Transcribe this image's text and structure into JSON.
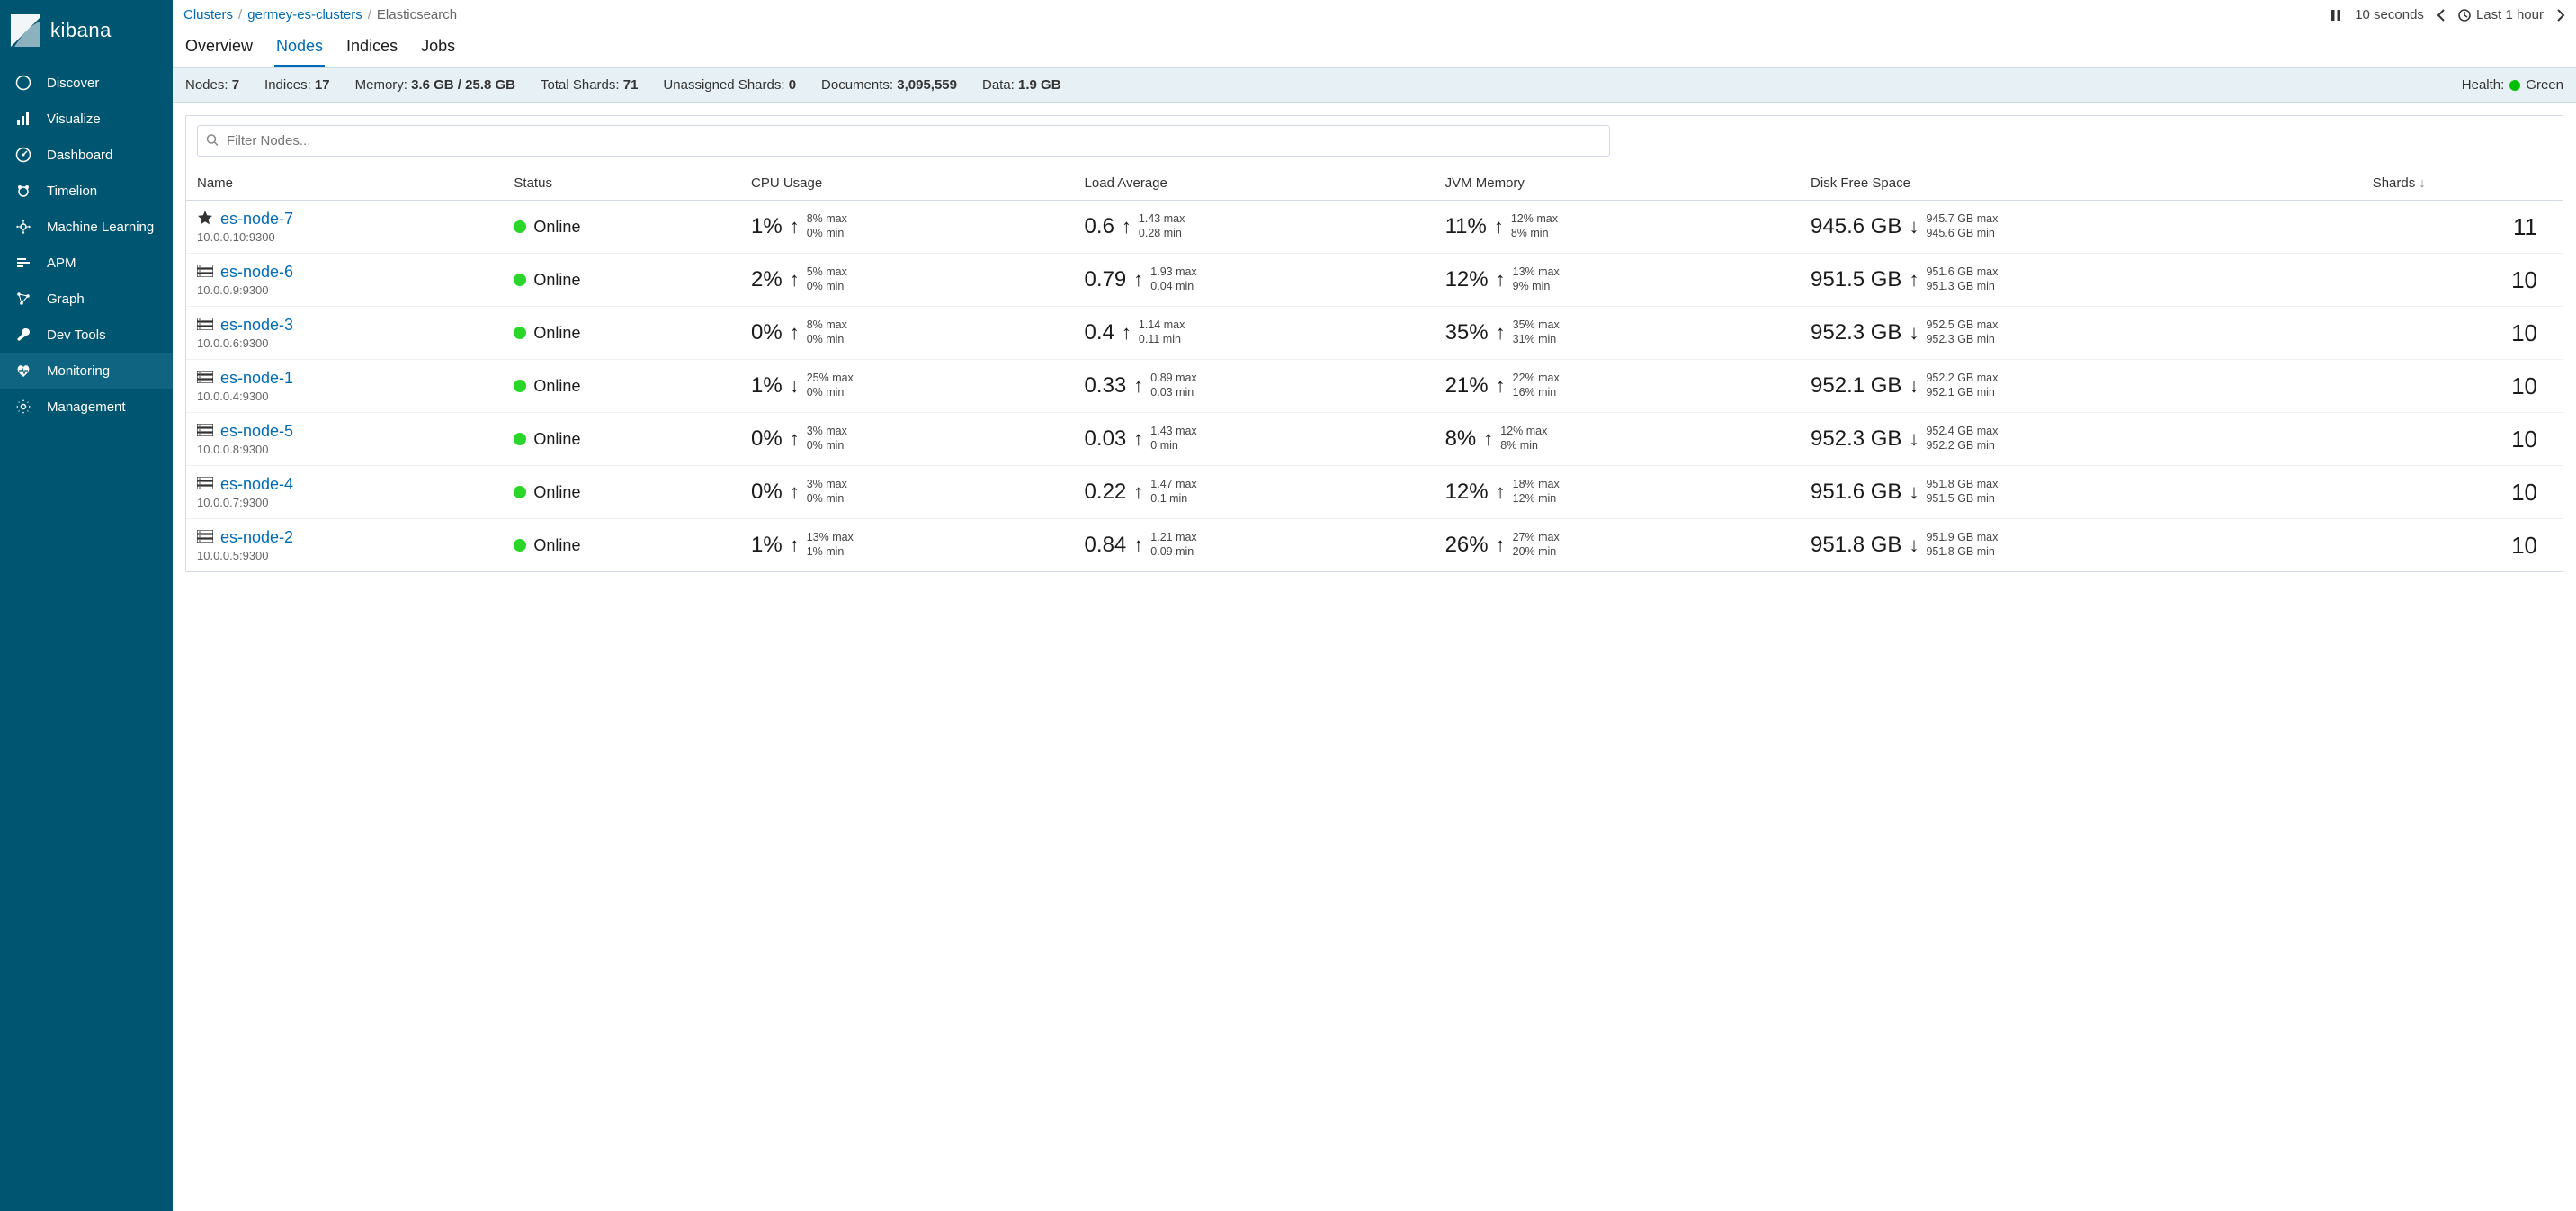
{
  "brand": {
    "name": "kibana"
  },
  "sidebar": {
    "items": [
      {
        "label": "Discover",
        "icon": "compass"
      },
      {
        "label": "Visualize",
        "icon": "bar-chart"
      },
      {
        "label": "Dashboard",
        "icon": "gauge"
      },
      {
        "label": "Timelion",
        "icon": "bear"
      },
      {
        "label": "Machine Learning",
        "icon": "ml"
      },
      {
        "label": "APM",
        "icon": "apm"
      },
      {
        "label": "Graph",
        "icon": "graph"
      },
      {
        "label": "Dev Tools",
        "icon": "wrench"
      },
      {
        "label": "Monitoring",
        "icon": "heart"
      },
      {
        "label": "Management",
        "icon": "gear"
      }
    ],
    "active_index": 8
  },
  "breadcrumb": {
    "items": [
      {
        "label": "Clusters",
        "link": true
      },
      {
        "label": "germey-es-clusters",
        "link": true
      },
      {
        "label": "Elasticsearch",
        "link": false
      }
    ]
  },
  "time": {
    "refresh_interval": "10 seconds",
    "range_label": "Last 1 hour"
  },
  "tabs": {
    "items": [
      "Overview",
      "Nodes",
      "Indices",
      "Jobs"
    ],
    "active_index": 1
  },
  "stats": {
    "nodes_label": "Nodes:",
    "nodes_value": "7",
    "indices_label": "Indices:",
    "indices_value": "17",
    "memory_label": "Memory:",
    "memory_value": "3.6 GB / 25.8 GB",
    "total_shards_label": "Total Shards:",
    "total_shards_value": "71",
    "unassigned_label": "Unassigned Shards:",
    "unassigned_value": "0",
    "documents_label": "Documents:",
    "documents_value": "3,095,559",
    "data_label": "Data:",
    "data_value": "1.9 GB",
    "health_label": "Health:",
    "health_value": "Green",
    "health_color": "#00bf00"
  },
  "filter": {
    "placeholder": "Filter Nodes..."
  },
  "columns": {
    "name": "Name",
    "status": "Status",
    "cpu": "CPU Usage",
    "load": "Load Average",
    "jvm": "JVM Memory",
    "disk": "Disk Free Space",
    "shards": "Shards"
  },
  "sort": {
    "column": "shards",
    "dir": "desc"
  },
  "nodes": [
    {
      "name": "es-node-7",
      "addr": "10.0.0.10:9300",
      "master": true,
      "status": "Online",
      "cpu": {
        "val": "1%",
        "dir": "up",
        "max": "8% max",
        "min": "0% min"
      },
      "load": {
        "val": "0.6",
        "dir": "up",
        "max": "1.43 max",
        "min": "0.28 min"
      },
      "jvm": {
        "val": "11%",
        "dir": "up",
        "max": "12% max",
        "min": "8% min"
      },
      "disk": {
        "val": "945.6 GB",
        "dir": "down",
        "max": "945.7 GB max",
        "min": "945.6 GB min"
      },
      "shards": "11"
    },
    {
      "name": "es-node-6",
      "addr": "10.0.0.9:9300",
      "master": false,
      "status": "Online",
      "cpu": {
        "val": "2%",
        "dir": "up",
        "max": "5% max",
        "min": "0% min"
      },
      "load": {
        "val": "0.79",
        "dir": "up",
        "max": "1.93 max",
        "min": "0.04 min"
      },
      "jvm": {
        "val": "12%",
        "dir": "up",
        "max": "13% max",
        "min": "9% min"
      },
      "disk": {
        "val": "951.5 GB",
        "dir": "up",
        "max": "951.6 GB max",
        "min": "951.3 GB min"
      },
      "shards": "10"
    },
    {
      "name": "es-node-3",
      "addr": "10.0.0.6:9300",
      "master": false,
      "status": "Online",
      "cpu": {
        "val": "0%",
        "dir": "up",
        "max": "8% max",
        "min": "0% min"
      },
      "load": {
        "val": "0.4",
        "dir": "up",
        "max": "1.14 max",
        "min": "0.11 min"
      },
      "jvm": {
        "val": "35%",
        "dir": "up",
        "max": "35% max",
        "min": "31% min"
      },
      "disk": {
        "val": "952.3 GB",
        "dir": "down",
        "max": "952.5 GB max",
        "min": "952.3 GB min"
      },
      "shards": "10"
    },
    {
      "name": "es-node-1",
      "addr": "10.0.0.4:9300",
      "master": false,
      "status": "Online",
      "cpu": {
        "val": "1%",
        "dir": "down",
        "max": "25% max",
        "min": "0% min"
      },
      "load": {
        "val": "0.33",
        "dir": "up",
        "max": "0.89 max",
        "min": "0.03 min"
      },
      "jvm": {
        "val": "21%",
        "dir": "up",
        "max": "22% max",
        "min": "16% min"
      },
      "disk": {
        "val": "952.1 GB",
        "dir": "down",
        "max": "952.2 GB max",
        "min": "952.1 GB min"
      },
      "shards": "10"
    },
    {
      "name": "es-node-5",
      "addr": "10.0.0.8:9300",
      "master": false,
      "status": "Online",
      "cpu": {
        "val": "0%",
        "dir": "up",
        "max": "3% max",
        "min": "0% min"
      },
      "load": {
        "val": "0.03",
        "dir": "up",
        "max": "1.43 max",
        "min": "0 min"
      },
      "jvm": {
        "val": "8%",
        "dir": "up",
        "max": "12% max",
        "min": "8% min"
      },
      "disk": {
        "val": "952.3 GB",
        "dir": "down",
        "max": "952.4 GB max",
        "min": "952.2 GB min"
      },
      "shards": "10"
    },
    {
      "name": "es-node-4",
      "addr": "10.0.0.7:9300",
      "master": false,
      "status": "Online",
      "cpu": {
        "val": "0%",
        "dir": "up",
        "max": "3% max",
        "min": "0% min"
      },
      "load": {
        "val": "0.22",
        "dir": "up",
        "max": "1.47 max",
        "min": "0.1 min"
      },
      "jvm": {
        "val": "12%",
        "dir": "up",
        "max": "18% max",
        "min": "12% min"
      },
      "disk": {
        "val": "951.6 GB",
        "dir": "down",
        "max": "951.8 GB max",
        "min": "951.5 GB min"
      },
      "shards": "10"
    },
    {
      "name": "es-node-2",
      "addr": "10.0.0.5:9300",
      "master": false,
      "status": "Online",
      "cpu": {
        "val": "1%",
        "dir": "up",
        "max": "13% max",
        "min": "1% min"
      },
      "load": {
        "val": "0.84",
        "dir": "up",
        "max": "1.21 max",
        "min": "0.09 min"
      },
      "jvm": {
        "val": "26%",
        "dir": "up",
        "max": "27% max",
        "min": "20% min"
      },
      "disk": {
        "val": "951.8 GB",
        "dir": "down",
        "max": "951.9 GB max",
        "min": "951.8 GB min"
      },
      "shards": "10"
    }
  ],
  "colors": {
    "brand_bg": "#005571",
    "link": "#006BB4",
    "stats_bg": "#e6f0f5",
    "online_dot": "#2bd62b"
  }
}
